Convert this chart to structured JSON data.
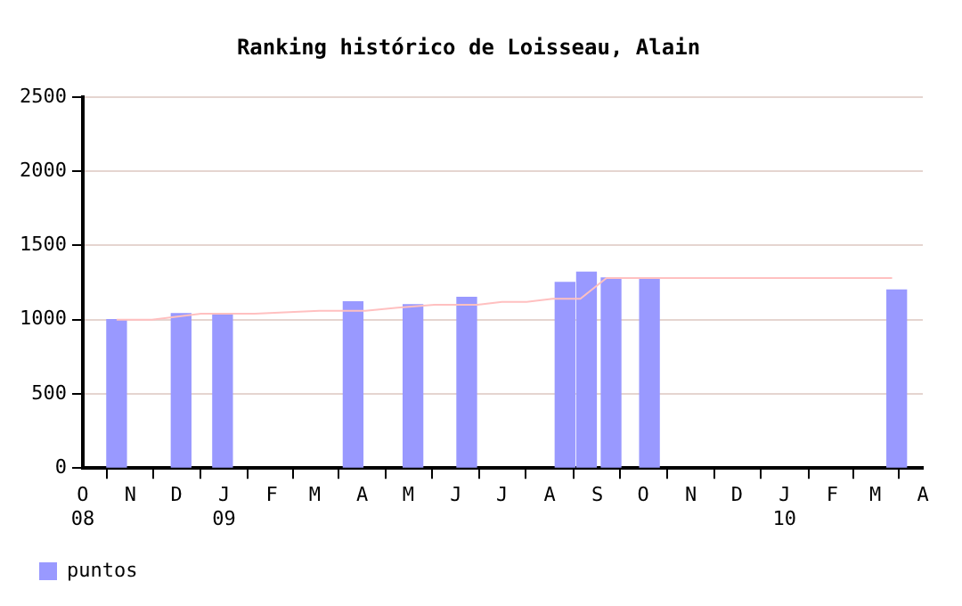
{
  "chart_data": {
    "type": "bar",
    "title": "Ranking histórico de Loisseau, Alain",
    "x": [
      "2008-10-23",
      "2008-12-04",
      "2008-12-31",
      "2009-03-26",
      "2009-05-04",
      "2009-06-08",
      "2009-08-11",
      "2009-08-25",
      "2009-09-10",
      "2009-10-05",
      "2010-03-15"
    ],
    "series": [
      {
        "name": "puntos",
        "color": "#9999ff",
        "values": [
          1000,
          1040,
          1040,
          1120,
          1100,
          1150,
          1250,
          1320,
          1280,
          1280,
          1200
        ]
      },
      {
        "type": "line",
        "color": "#ffc0c0",
        "x": [
          "2008-10-23",
          "2008-11-15",
          "2008-12-17",
          "2009-01-21",
          "2009-03-04",
          "2009-04-03",
          "2009-04-24",
          "2009-05-18",
          "2009-06-15",
          "2009-07-01",
          "2009-07-17",
          "2009-08-03",
          "2009-08-21",
          "2009-09-07",
          "2009-12-24",
          "2009-12-28",
          "2010-03-12"
        ],
        "values": [
          1000,
          1000,
          1040,
          1040,
          1060,
          1060,
          1080,
          1100,
          1100,
          1120,
          1120,
          1140,
          1140,
          1280,
          1280,
          1280,
          1280
        ]
      }
    ],
    "xlim": [
      "2008-10-01",
      "2010-04-01"
    ],
    "xticks": [
      {
        "value": "2008-10-01",
        "label": "O\n08"
      },
      {
        "value": "2008-11-01",
        "label": "N"
      },
      {
        "value": "2008-12-01",
        "label": "D"
      },
      {
        "value": "2009-01-01",
        "label": "J\n09"
      },
      {
        "value": "2009-02-01",
        "label": "F"
      },
      {
        "value": "2009-03-01",
        "label": "M"
      },
      {
        "value": "2009-04-01",
        "label": "A"
      },
      {
        "value": "2009-05-01",
        "label": "M"
      },
      {
        "value": "2009-06-01",
        "label": "J"
      },
      {
        "value": "2009-07-01",
        "label": "J"
      },
      {
        "value": "2009-08-01",
        "label": "A"
      },
      {
        "value": "2009-09-01",
        "label": "S"
      },
      {
        "value": "2009-10-01",
        "label": "O"
      },
      {
        "value": "2009-11-01",
        "label": "N"
      },
      {
        "value": "2009-12-01",
        "label": "D"
      },
      {
        "value": "2010-01-01",
        "label": "J\n10"
      },
      {
        "value": "2010-02-01",
        "label": "F"
      },
      {
        "value": "2010-03-01",
        "label": "M"
      },
      {
        "value": "2010-04-01",
        "label": "A"
      }
    ],
    "ylim": [
      0,
      2500
    ],
    "yticks": [
      0,
      500,
      1000,
      1500,
      2000,
      2500
    ],
    "grid": "y",
    "legend": "bottom left",
    "marker": "none"
  }
}
